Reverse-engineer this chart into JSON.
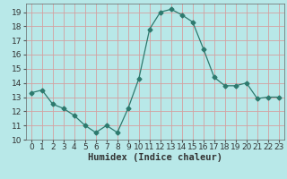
{
  "x": [
    0,
    1,
    2,
    3,
    4,
    5,
    6,
    7,
    8,
    9,
    10,
    11,
    12,
    13,
    14,
    15,
    16,
    17,
    18,
    19,
    20,
    21,
    22,
    23
  ],
  "y": [
    13.3,
    13.5,
    12.5,
    12.2,
    11.7,
    11.0,
    10.5,
    11.0,
    10.5,
    12.2,
    14.3,
    17.8,
    19.0,
    19.2,
    18.8,
    18.3,
    16.4,
    14.4,
    13.8,
    13.8,
    14.0,
    12.9,
    13.0,
    13.0
  ],
  "line_color": "#2d7a6e",
  "marker": "D",
  "marker_size": 2.5,
  "bg_color": "#b8e8e8",
  "grid_color": "#d4a0a0",
  "xlabel": "Humidex (Indice chaleur)",
  "xlim": [
    -0.5,
    23.5
  ],
  "ylim": [
    10,
    19.6
  ],
  "yticks": [
    10,
    11,
    12,
    13,
    14,
    15,
    16,
    17,
    18,
    19
  ],
  "xticks": [
    0,
    1,
    2,
    3,
    4,
    5,
    6,
    7,
    8,
    9,
    10,
    11,
    12,
    13,
    14,
    15,
    16,
    17,
    18,
    19,
    20,
    21,
    22,
    23
  ],
  "tick_fontsize": 6.5,
  "xlabel_fontsize": 7.5
}
